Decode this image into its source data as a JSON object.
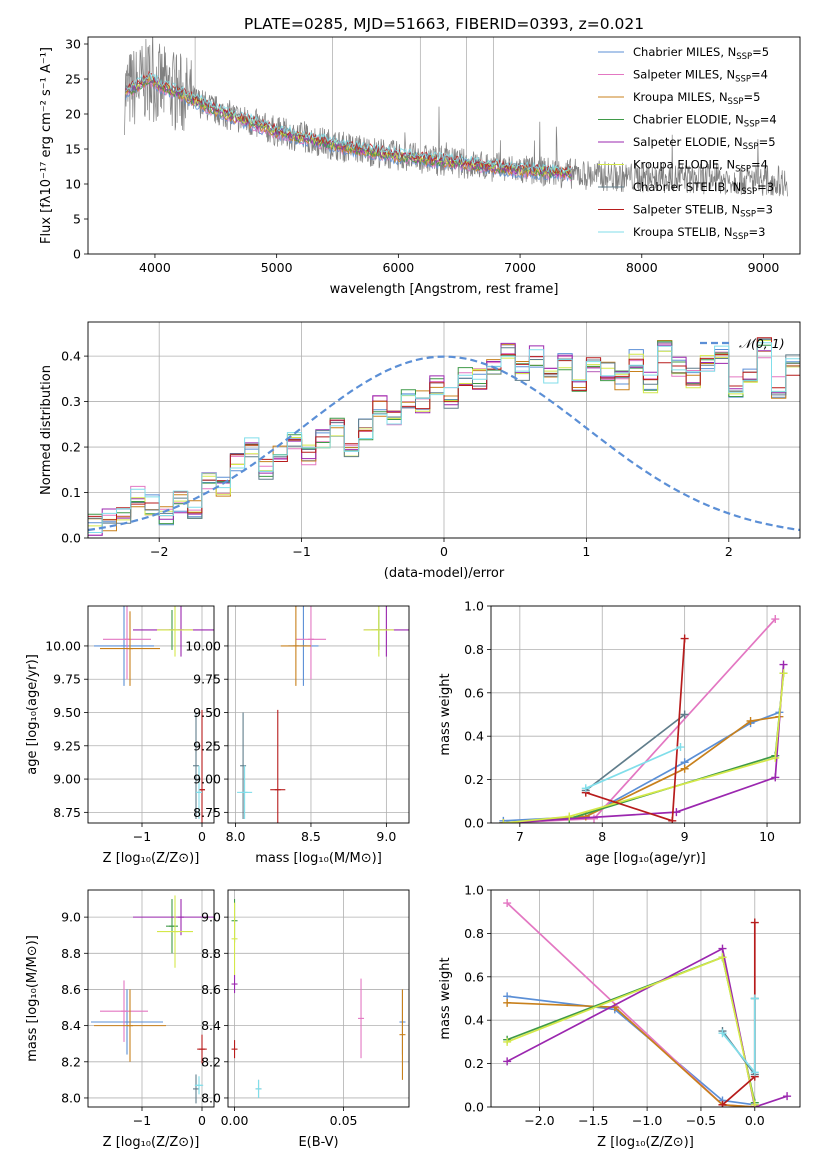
{
  "figure_title": "PLATE=0285, MJD=51663, FIBERID=0393, z=0.021",
  "chart_data": [
    {
      "id": "spectrum",
      "type": "line",
      "xlabel": "wavelength [Angstrom, rest frame]",
      "ylabel": "Flux [fλ10⁻¹⁷ erg cm⁻² s⁻¹ A⁻¹]",
      "xlim": [
        3450,
        9300
      ],
      "ylim": [
        0,
        31
      ],
      "xticks": [
        4000,
        5000,
        6000,
        7000,
        8000,
        9000
      ],
      "yticks": [
        0,
        5,
        10,
        15,
        20,
        25,
        30
      ],
      "legend_position": "top-right",
      "data_continuum": {
        "x": [
          3750,
          3850,
          3950,
          4050,
          4200,
          4500,
          5000,
          5500,
          6000,
          6500,
          7000,
          7400,
          7800,
          8200,
          8600,
          9000,
          9200
        ],
        "y": [
          23,
          24,
          25,
          24,
          23,
          20.5,
          17.5,
          15.5,
          14,
          13,
          12,
          11.5,
          11,
          10.8,
          10.7,
          10.5,
          10.4
        ]
      },
      "models_end_x": [
        7420,
        7420,
        7420,
        7420,
        7420,
        7420,
        7420,
        7420,
        7420
      ],
      "series": [
        {
          "name": "Chabrier MILES, N",
          "sub": "SSP",
          "suffix": "=5",
          "color": "#5b8fd6"
        },
        {
          "name": "Salpeter MILES, N",
          "sub": "SSP",
          "suffix": "=4",
          "color": "#e377c2"
        },
        {
          "name": "Kroupa MILES, N",
          "sub": "SSP",
          "suffix": "=5",
          "color": "#c8801c"
        },
        {
          "name": "Chabrier ELODIE, N",
          "sub": "SSP",
          "suffix": "=4",
          "color": "#3f9a48"
        },
        {
          "name": "Salpeter ELODIE, N",
          "sub": "SSP",
          "suffix": "=5",
          "color": "#9b27af"
        },
        {
          "name": "Kroupa ELODIE, N",
          "sub": "SSP",
          "suffix": "=4",
          "color": "#d4e84a"
        },
        {
          "name": "Chabrier STELIB, N",
          "sub": "SSP",
          "suffix": "=3",
          "color": "#607d8b"
        },
        {
          "name": "Salpeter STELIB, N",
          "sub": "SSP",
          "suffix": "=3",
          "color": "#b71c1c"
        },
        {
          "name": "Kroupa STELIB, N",
          "sub": "SSP",
          "suffix": "=3",
          "color": "#80deea"
        }
      ]
    },
    {
      "id": "histogram",
      "type": "line",
      "xlabel": "(data-model)/error",
      "ylabel": "Normed distribution",
      "xlim": [
        -2.5,
        2.5
      ],
      "ylim": [
        0,
        0.475
      ],
      "xticks": [
        -2,
        -1,
        0,
        1,
        2
      ],
      "yticks": [
        0.0,
        0.1,
        0.2,
        0.3,
        0.4
      ],
      "legend": "𝒩(0, 1)",
      "legend_position": "top-right",
      "reference_curve": "normal(0,1)",
      "reference_color": "#5b8fd6",
      "bin_edges_start": -2.5,
      "bin_width": 0.1,
      "hist_values": [
        0.03,
        0.04,
        0.05,
        0.09,
        0.07,
        0.05,
        0.08,
        0.06,
        0.13,
        0.11,
        0.17,
        0.2,
        0.15,
        0.18,
        0.21,
        0.18,
        0.22,
        0.24,
        0.19,
        0.24,
        0.29,
        0.26,
        0.31,
        0.3,
        0.34,
        0.31,
        0.36,
        0.35,
        0.38,
        0.41,
        0.37,
        0.4,
        0.36,
        0.39,
        0.33,
        0.38,
        0.37,
        0.35,
        0.39,
        0.34,
        0.41,
        0.38,
        0.35,
        0.39,
        0.4,
        0.33,
        0.36,
        0.42,
        0.33,
        0.38
      ],
      "hist_colors": [
        "#5b8fd6",
        "#e377c2",
        "#c8801c",
        "#3f9a48",
        "#9b27af",
        "#d4e84a",
        "#607d8b",
        "#b71c1c",
        "#80deea"
      ]
    },
    {
      "id": "age_vs_Z",
      "type": "scatter",
      "xlabel": "Z [log₁₀(Z/Z⊙)]",
      "ylabel": "age  [log₁₀(age/yr)]",
      "xlim": [
        -1.9,
        0.2
      ],
      "ylim": [
        8.67,
        10.3
      ],
      "xticks": [
        -1,
        0
      ],
      "yticks": [
        8.75,
        9.0,
        9.25,
        9.5,
        9.75,
        10.0
      ],
      "points": [
        {
          "x": -1.3,
          "y": 10.0,
          "xerr": 0.5,
          "yerr": 0.3,
          "color": "#5b8fd6"
        },
        {
          "x": -1.25,
          "y": 10.05,
          "xerr": 0.4,
          "yerr": 0.3,
          "color": "#e377c2"
        },
        {
          "x": -1.2,
          "y": 9.98,
          "xerr": 0.5,
          "yerr": 0.28,
          "color": "#c8801c"
        },
        {
          "x": -0.5,
          "y": 10.12,
          "xerr": 0.0,
          "yerr": 0.15,
          "color": "#3f9a48"
        },
        {
          "x": -0.35,
          "y": 10.12,
          "xerr": 0.8,
          "yerr": 0.2,
          "color": "#9b27af"
        },
        {
          "x": -0.45,
          "y": 10.12,
          "xerr": 0.3,
          "yerr": 0.2,
          "color": "#d4e84a"
        },
        {
          "x": -0.1,
          "y": 9.1,
          "xerr": 0.0,
          "yerr": 0.4,
          "color": "#607d8b"
        },
        {
          "x": 0.0,
          "y": 8.92,
          "xerr": 0.05,
          "yerr": 0.6,
          "color": "#b71c1c"
        },
        {
          "x": -0.05,
          "y": 8.9,
          "xerr": 0.05,
          "yerr": 0.2,
          "color": "#80deea"
        }
      ]
    },
    {
      "id": "age_vs_mass",
      "type": "scatter",
      "xlabel": "mass [log₁₀(M/M⊙)]",
      "ylabel": "",
      "xlim": [
        7.95,
        9.15
      ],
      "ylim": [
        8.67,
        10.3
      ],
      "xticks": [
        8.0,
        8.5,
        9.0
      ],
      "yticks": [
        8.75,
        9.0,
        9.25,
        9.5,
        9.75,
        10.0
      ],
      "points": [
        {
          "x": 8.45,
          "y": 10.0,
          "xerr": 0.1,
          "yerr": 0.3,
          "color": "#5b8fd6"
        },
        {
          "x": 8.5,
          "y": 10.05,
          "xerr": 0.1,
          "yerr": 0.3,
          "color": "#e377c2"
        },
        {
          "x": 8.4,
          "y": 10.0,
          "xerr": 0.1,
          "yerr": 0.3,
          "color": "#c8801c"
        },
        {
          "x": 8.95,
          "y": 10.12,
          "xerr": 0.05,
          "yerr": 0.15,
          "color": "#3f9a48"
        },
        {
          "x": 9.0,
          "y": 10.12,
          "xerr": 0.15,
          "yerr": 0.2,
          "color": "#9b27af"
        },
        {
          "x": 8.95,
          "y": 10.12,
          "xerr": 0.1,
          "yerr": 0.2,
          "color": "#d4e84a"
        },
        {
          "x": 8.05,
          "y": 9.1,
          "xerr": 0.0,
          "yerr": 0.4,
          "color": "#607d8b"
        },
        {
          "x": 8.28,
          "y": 8.92,
          "xerr": 0.05,
          "yerr": 0.6,
          "color": "#b71c1c"
        },
        {
          "x": 8.06,
          "y": 8.9,
          "xerr": 0.05,
          "yerr": 0.2,
          "color": "#80deea"
        }
      ]
    },
    {
      "id": "massweight_vs_age",
      "type": "line",
      "xlabel": "age  [log₁₀(age/yr)]",
      "ylabel": "mass weight",
      "xlim": [
        6.65,
        10.4
      ],
      "ylim": [
        0,
        1.0
      ],
      "xticks": [
        7,
        8,
        9,
        10
      ],
      "yticks": [
        0.0,
        0.2,
        0.4,
        0.6,
        0.8,
        1.0
      ],
      "series": [
        {
          "color": "#5b8fd6",
          "x": [
            6.8,
            7.8,
            9.0,
            9.8,
            10.15
          ],
          "y": [
            0.01,
            0.03,
            0.28,
            0.46,
            0.51
          ]
        },
        {
          "color": "#e377c2",
          "x": [
            6.8,
            7.9,
            10.1
          ],
          "y": [
            0.0,
            0.02,
            0.94
          ]
        },
        {
          "color": "#c8801c",
          "x": [
            6.8,
            7.8,
            9.0,
            9.8,
            10.15
          ],
          "y": [
            0.0,
            0.03,
            0.25,
            0.47,
            0.49
          ]
        },
        {
          "color": "#3f9a48",
          "x": [
            6.8,
            7.6,
            10.1,
            10.2
          ],
          "y": [
            0.0,
            0.02,
            0.31,
            0.69
          ]
        },
        {
          "color": "#9b27af",
          "x": [
            6.8,
            8.9,
            10.1,
            10.2
          ],
          "y": [
            0.0,
            0.05,
            0.21,
            0.73
          ]
        },
        {
          "color": "#d4e84a",
          "x": [
            6.8,
            7.6,
            10.1,
            10.2
          ],
          "y": [
            0.0,
            0.03,
            0.3,
            0.69
          ]
        },
        {
          "color": "#607d8b",
          "x": [
            7.8,
            9.0
          ],
          "y": [
            0.15,
            0.5
          ]
        },
        {
          "color": "#b71c1c",
          "x": [
            7.8,
            8.85,
            9.0
          ],
          "y": [
            0.14,
            0.01,
            0.85
          ]
        },
        {
          "color": "#80deea",
          "x": [
            7.8,
            8.95
          ],
          "y": [
            0.16,
            0.35
          ]
        }
      ]
    },
    {
      "id": "mass_vs_Z",
      "type": "scatter",
      "xlabel": "Z [log₁₀(Z/Z⊙)]",
      "ylabel": "mass [log₁₀(M/M⊙)]",
      "xlim": [
        -1.9,
        0.2
      ],
      "ylim": [
        7.95,
        9.15
      ],
      "xticks": [
        -1,
        0
      ],
      "yticks": [
        8.0,
        8.2,
        8.4,
        8.6,
        8.8,
        9.0
      ],
      "points": [
        {
          "x": -1.25,
          "y": 8.42,
          "xerr": 0.6,
          "yerr": 0.18,
          "color": "#5b8fd6"
        },
        {
          "x": -1.3,
          "y": 8.48,
          "xerr": 0.4,
          "yerr": 0.17,
          "color": "#e377c2"
        },
        {
          "x": -1.2,
          "y": 8.4,
          "xerr": 0.6,
          "yerr": 0.2,
          "color": "#c8801c"
        },
        {
          "x": -0.5,
          "y": 8.95,
          "xerr": 0.1,
          "yerr": 0.15,
          "color": "#3f9a48"
        },
        {
          "x": -0.35,
          "y": 9.0,
          "xerr": 0.8,
          "yerr": 0.1,
          "color": "#9b27af"
        },
        {
          "x": -0.45,
          "y": 8.92,
          "xerr": 0.3,
          "yerr": 0.2,
          "color": "#d4e84a"
        },
        {
          "x": -0.1,
          "y": 8.05,
          "xerr": 0.0,
          "yerr": 0.08,
          "color": "#607d8b"
        },
        {
          "x": 0.0,
          "y": 8.27,
          "xerr": 0.08,
          "yerr": 0.08,
          "color": "#b71c1c"
        },
        {
          "x": -0.05,
          "y": 8.07,
          "xerr": 0.07,
          "yerr": 0.05,
          "color": "#80deea"
        }
      ]
    },
    {
      "id": "mass_vs_ebv",
      "type": "scatter",
      "xlabel": "E(B-V)",
      "ylabel": "",
      "xlim": [
        -0.003,
        0.08
      ],
      "ylim": [
        7.95,
        9.15
      ],
      "xticks": [
        0.0,
        0.05
      ],
      "yticks": [
        8.0,
        8.2,
        8.4,
        8.6,
        8.8,
        9.0
      ],
      "points": [
        {
          "x": 0.077,
          "y": 8.42,
          "xerr": 0.0,
          "yerr": 0.18,
          "color": "#5b8fd6"
        },
        {
          "x": 0.058,
          "y": 8.44,
          "xerr": 0.0,
          "yerr": 0.22,
          "color": "#e377c2"
        },
        {
          "x": 0.077,
          "y": 8.35,
          "xerr": 0.0,
          "yerr": 0.25,
          "color": "#c8801c"
        },
        {
          "x": 0.0,
          "y": 8.98,
          "xerr": 0.0,
          "yerr": 0.12,
          "color": "#3f9a48"
        },
        {
          "x": 0.0,
          "y": 8.63,
          "xerr": 0.0,
          "yerr": 0.05,
          "color": "#9b27af"
        },
        {
          "x": 0.0,
          "y": 8.88,
          "xerr": 0.0,
          "yerr": 0.2,
          "color": "#d4e84a"
        },
        {
          "x": 0.011,
          "y": 8.05,
          "xerr": 0.0,
          "yerr": 0.05,
          "color": "#607d8b"
        },
        {
          "x": 0.0,
          "y": 8.27,
          "xerr": 0.0,
          "yerr": 0.05,
          "color": "#b71c1c"
        },
        {
          "x": 0.011,
          "y": 8.05,
          "xerr": 0.0,
          "yerr": 0.05,
          "color": "#80deea"
        }
      ]
    },
    {
      "id": "massweight_vs_Z",
      "type": "line",
      "xlabel": "Z [log₁₀(Z/Z⊙)]",
      "ylabel": "mass weight",
      "xlim": [
        -2.45,
        0.42
      ],
      "ylim": [
        0,
        1.0
      ],
      "xticks": [
        -2.0,
        -1.5,
        -1.0,
        -0.5,
        0.0
      ],
      "yticks": [
        0.0,
        0.2,
        0.4,
        0.6,
        0.8,
        1.0
      ],
      "series": [
        {
          "color": "#5b8fd6",
          "x": [
            -2.3,
            -1.3,
            -0.3,
            0.0
          ],
          "y": [
            0.51,
            0.45,
            0.03,
            0.01
          ]
        },
        {
          "color": "#e377c2",
          "x": [
            -2.3,
            -0.3,
            0.0
          ],
          "y": [
            0.94,
            0.01,
            0.0
          ]
        },
        {
          "color": "#c8801c",
          "x": [
            -2.3,
            -1.3,
            -0.3,
            0.0
          ],
          "y": [
            0.48,
            0.46,
            0.01,
            0.0
          ]
        },
        {
          "color": "#3f9a48",
          "x": [
            -2.3,
            -0.3,
            0.0
          ],
          "y": [
            0.31,
            0.69,
            0.02
          ]
        },
        {
          "color": "#9b27af",
          "x": [
            -2.3,
            -0.3,
            0.0,
            0.3
          ],
          "y": [
            0.21,
            0.73,
            0.0,
            0.05
          ]
        },
        {
          "color": "#d4e84a",
          "x": [
            -2.3,
            -0.3,
            0.0
          ],
          "y": [
            0.3,
            0.69,
            0.01
          ]
        },
        {
          "color": "#607d8b",
          "x": [
            -0.3,
            0.0,
            0.0
          ],
          "y": [
            0.35,
            0.15,
            0.5
          ]
        },
        {
          "color": "#b71c1c",
          "x": [
            -0.3,
            0.0,
            0.0
          ],
          "y": [
            0.01,
            0.14,
            0.85
          ]
        },
        {
          "color": "#80deea",
          "x": [
            -0.3,
            0.0,
            0.0
          ],
          "y": [
            0.34,
            0.16,
            0.5
          ]
        }
      ]
    }
  ]
}
